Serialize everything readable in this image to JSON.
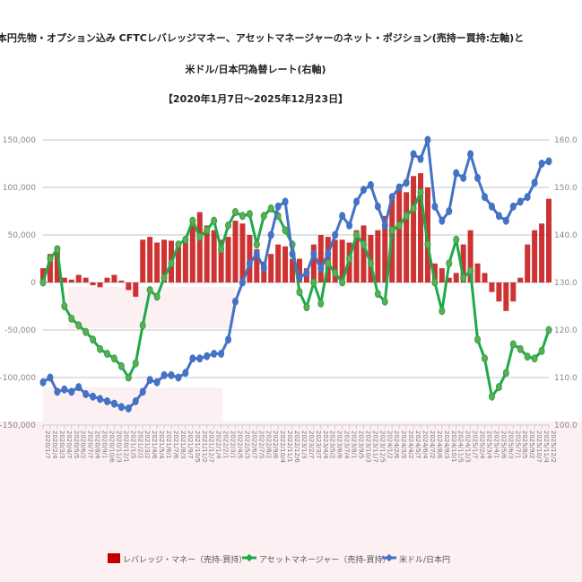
{
  "chart_data": {
    "type": "bar+line",
    "title": [
      "日本円先物・オプション込み CFTCレバレッジマネー、アセットマネージャーのネット・ポジション(売持ー買持:左軸)と",
      "米ドル/日本円為替レート(右軸)",
      "【2020年1月7日～2025年12月23日】"
    ],
    "left_axis": {
      "ylim": [
        -150000,
        150000
      ],
      "ticks": [
        "150,000",
        "100,000",
        "50,000",
        "0",
        "-50,000",
        "-100,000",
        "-150,000"
      ]
    },
    "right_axis": {
      "ylim": [
        100,
        160
      ],
      "ticks": [
        "160.0",
        "150.0",
        "140.0",
        "130.0",
        "120.0",
        "110.0",
        "100.0"
      ]
    },
    "grid": true,
    "legend_position": "bottom",
    "categories": [
      "2020/1/7",
      "2020/2/4",
      "2020/3/3",
      "2020/4/7",
      "2020/5/5",
      "2020/6/2",
      "2020/7/7",
      "2020/8/4",
      "2020/9/1",
      "2020/10/6",
      "2020/11/3",
      "2020/12/1",
      "2021/1/5",
      "2021/2/2",
      "2021/3/2",
      "2021/4/6",
      "2021/5/4",
      "2021/6/1",
      "2021/7/6",
      "2021/8/3",
      "2021/9/7",
      "2021/10/5",
      "2021/11/2",
      "2021/12/7",
      "2022/1/4",
      "2022/2/1",
      "2022/3/1",
      "2022/4/5",
      "2022/5/3",
      "2022/6/7",
      "2022/7/5",
      "2022/8/2",
      "2022/9/6",
      "2022/10/4",
      "2022/11/1",
      "2022/12/6",
      "2023/1/3",
      "2023/2/7",
      "2023/3/7",
      "2023/4/4",
      "2023/5/2",
      "2023/6/6",
      "2023/7/4",
      "2023/8/1",
      "2023/9/5",
      "2023/10/3",
      "2023/11/7",
      "2023/12/5",
      "2024/1/2",
      "2024/2/6",
      "2024/3/5",
      "2024/4/2",
      "2024/5/7",
      "2024/6/4",
      "2024/7/2",
      "2024/8/6",
      "2024/9/3",
      "2024/10/1",
      "2024/11/5",
      "2024/12/3",
      "2025/1/7",
      "2025/2/4",
      "2025/3/4",
      "2025/4/1",
      "2025/5/6",
      "2025/6/3",
      "2025/7/1",
      "2025/8/5",
      "2025/9/2",
      "2025/10/7",
      "2025/11/4",
      "2025/12/2"
    ],
    "series": [
      {
        "name": "レバレッジ・マネー（売持-買持）",
        "type": "bar",
        "axis": "left",
        "color": "#c00000",
        "values": [
          15000,
          30000,
          38000,
          5000,
          3000,
          8000,
          5000,
          -3000,
          -5000,
          5000,
          8000,
          2000,
          -8000,
          -15000,
          45000,
          48000,
          42000,
          45000,
          44000,
          40000,
          45000,
          60000,
          74000,
          60000,
          55000,
          45000,
          48000,
          65000,
          62000,
          50000,
          35000,
          22000,
          30000,
          40000,
          38000,
          25000,
          25000,
          15000,
          40000,
          50000,
          48000,
          45000,
          45000,
          42000,
          55000,
          60000,
          50000,
          55000,
          70000,
          90000,
          100000,
          95000,
          112000,
          115000,
          100000,
          20000,
          15000,
          5000,
          10000,
          40000,
          55000,
          20000,
          10000,
          -10000,
          -20000,
          -30000,
          -20000,
          5000,
          40000,
          55000,
          62000,
          88000
        ]
      },
      {
        "name": "アセットマネージャー（売持-買持）",
        "type": "line",
        "axis": "left",
        "color": "#1faa4a",
        "values": [
          0,
          25000,
          35000,
          -25000,
          -38000,
          -45000,
          -52000,
          -60000,
          -70000,
          -75000,
          -80000,
          -88000,
          -100000,
          -85000,
          -45000,
          -8000,
          -15000,
          5000,
          20000,
          40000,
          45000,
          65000,
          48000,
          55000,
          65000,
          35000,
          60000,
          74000,
          70000,
          72000,
          40000,
          70000,
          78000,
          70000,
          55000,
          40000,
          -10000,
          -26000,
          0,
          -22000,
          20000,
          10000,
          0,
          25000,
          50000,
          40000,
          20000,
          -12000,
          -20000,
          55000,
          60000,
          70000,
          78000,
          95000,
          40000,
          0,
          -30000,
          20000,
          45000,
          5000,
          12000,
          -60000,
          -80000,
          -120000,
          -110000,
          -95000,
          -65000,
          -70000,
          -78000,
          -80000,
          -72000,
          -50000
        ]
      },
      {
        "name": "米ドル/日本円",
        "type": "line",
        "axis": "right",
        "color": "#4472c4",
        "values": [
          109,
          110,
          107,
          107.5,
          107,
          108,
          106.5,
          106,
          105.5,
          105,
          104.5,
          103.8,
          103.5,
          105,
          107,
          109.5,
          109,
          110.5,
          110.5,
          110,
          111,
          114,
          114,
          114.5,
          115,
          115,
          118,
          126,
          130,
          134,
          136,
          133,
          140,
          146,
          147,
          136,
          131,
          132,
          136,
          133,
          136,
          140,
          144,
          142,
          147,
          149.5,
          150.5,
          146,
          142,
          148,
          150,
          151,
          157,
          156,
          160,
          146,
          143,
          145,
          153,
          152,
          157,
          152,
          148,
          146,
          144,
          143,
          146,
          147,
          148,
          151,
          155,
          155.5
        ]
      }
    ]
  },
  "legend": [
    {
      "label": "レバレッジ・マネー（売持-買持）",
      "color": "#c00000",
      "icon": "square"
    },
    {
      "label": "アセットマネージャー（売持-買持）",
      "color": "#1faa4a",
      "icon": "line-diamond"
    },
    {
      "label": "米ドル/日本円",
      "color": "#4472c4",
      "icon": "line-diamond"
    }
  ]
}
